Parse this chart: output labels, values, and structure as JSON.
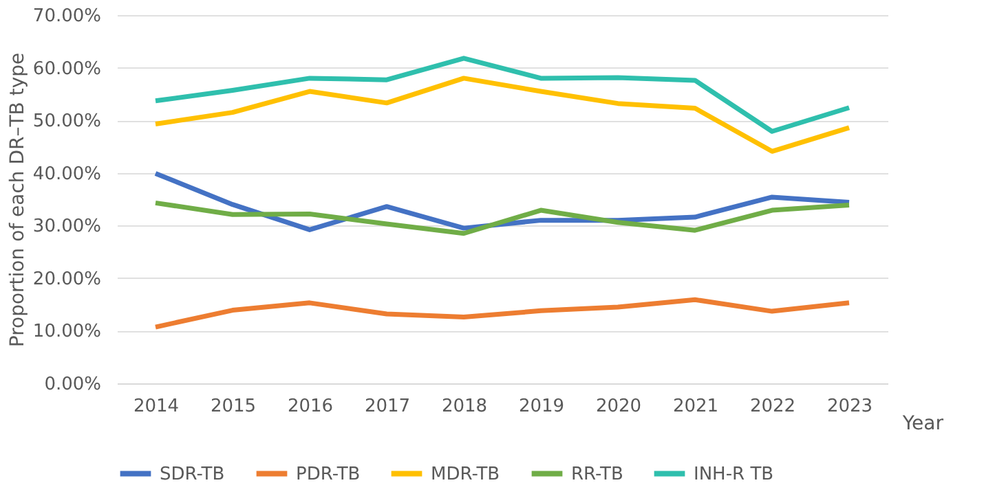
{
  "chart_data": {
    "type": "line",
    "xlabel": "Year",
    "ylabel": "Proportion of each DR–TB type",
    "categories": [
      "2014",
      "2015",
      "2016",
      "2017",
      "2018",
      "2019",
      "2020",
      "2021",
      "2022",
      "2023"
    ],
    "series": [
      {
        "name": "SDR-TB",
        "color": "#4472c4",
        "values": [
          39.9,
          34.0,
          29.2,
          33.6,
          29.5,
          31.0,
          31.0,
          31.6,
          35.4,
          34.4
        ]
      },
      {
        "name": "PDR-TB",
        "color": "#ed7d31",
        "values": [
          10.7,
          13.9,
          15.3,
          13.2,
          12.6,
          13.8,
          14.5,
          15.9,
          13.7,
          15.3
        ]
      },
      {
        "name": "MDR-TB",
        "color": "#ffc000",
        "values": [
          49.3,
          51.5,
          55.5,
          53.3,
          58.0,
          55.5,
          53.2,
          52.3,
          44.1,
          48.6
        ]
      },
      {
        "name": "RR-TB",
        "color": "#70ad47",
        "values": [
          34.3,
          32.1,
          32.2,
          30.3,
          28.5,
          32.9,
          30.6,
          29.1,
          32.9,
          33.9
        ]
      },
      {
        "name": "INH-R TB",
        "color": "#2fbfad",
        "values": [
          53.7,
          55.7,
          58.0,
          57.7,
          61.8,
          58.0,
          58.1,
          57.6,
          47.9,
          52.4
        ]
      }
    ],
    "ylim": [
      0,
      70
    ],
    "yticks": [
      {
        "value": 0,
        "label": "0.00%"
      },
      {
        "value": 10,
        "label": "10.00%"
      },
      {
        "value": 20,
        "label": "20.00%"
      },
      {
        "value": 30,
        "label": "30.00%"
      },
      {
        "value": 40,
        "label": "40.00%"
      },
      {
        "value": 50,
        "label": "50.00%"
      },
      {
        "value": 60,
        "label": "60.00%"
      },
      {
        "value": 70,
        "label": "70.00%"
      }
    ],
    "grid": "y",
    "legend": "bottom",
    "marker": "none",
    "line_style": "solid"
  }
}
